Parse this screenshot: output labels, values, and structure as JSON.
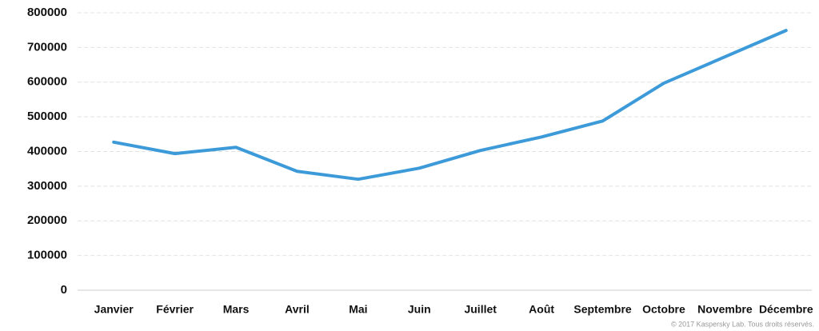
{
  "chart_data": {
    "type": "line",
    "categories": [
      "Janvier",
      "Février",
      "Mars",
      "Avril",
      "Mai",
      "Juin",
      "Juillet",
      "Août",
      "Septembre",
      "Octobre",
      "Novembre",
      "Décembre"
    ],
    "series": [
      {
        "color": "#3d9ad9",
        "values": [
          427000,
          394000,
          412000,
          343000,
          320000,
          352000,
          403000,
          442000,
          488000,
          597000,
          673000,
          749000
        ]
      }
    ],
    "ylim": [
      0,
      800000
    ],
    "yticks": [
      0,
      100000,
      200000,
      300000,
      400000,
      500000,
      600000,
      700000,
      800000
    ],
    "grid": true,
    "credit": "© 2017 Kaspersky Lab. Tous droits réservés."
  }
}
